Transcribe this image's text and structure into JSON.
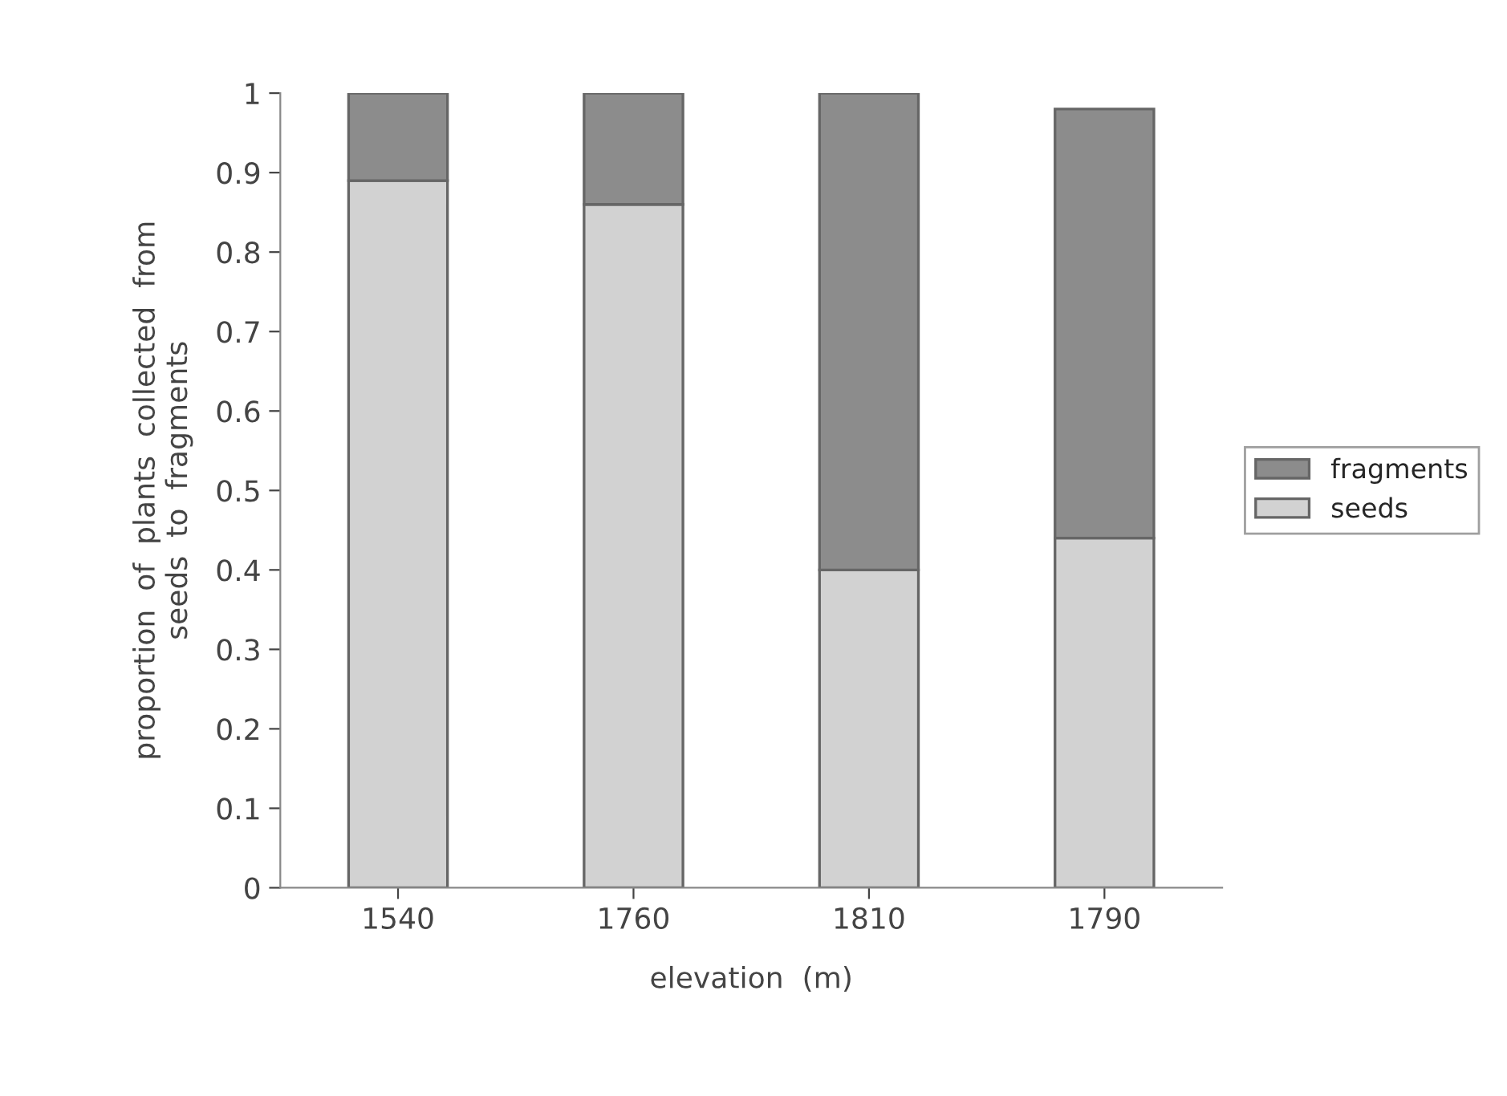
{
  "chart_data": {
    "type": "bar",
    "stacked": true,
    "xlabel": "elevation  (m)",
    "ylabel": "proportion  of  plants  collected  from\nseeds  to  fragments",
    "categories": [
      "1540",
      "1760",
      "1810",
      "1790"
    ],
    "series": [
      {
        "name": "seeds",
        "color": "#d2d2d2",
        "values": [
          0.89,
          0.86,
          0.4,
          0.44
        ]
      },
      {
        "name": "fragments",
        "color": "#8c8c8c",
        "values": [
          0.11,
          0.14,
          0.6,
          0.54
        ]
      }
    ],
    "ylim": [
      0,
      1
    ],
    "yticks": [
      0,
      0.1,
      0.2,
      0.3,
      0.4,
      0.5,
      0.6,
      0.7,
      0.8,
      0.9,
      1
    ],
    "legend": "right",
    "grid": false
  }
}
